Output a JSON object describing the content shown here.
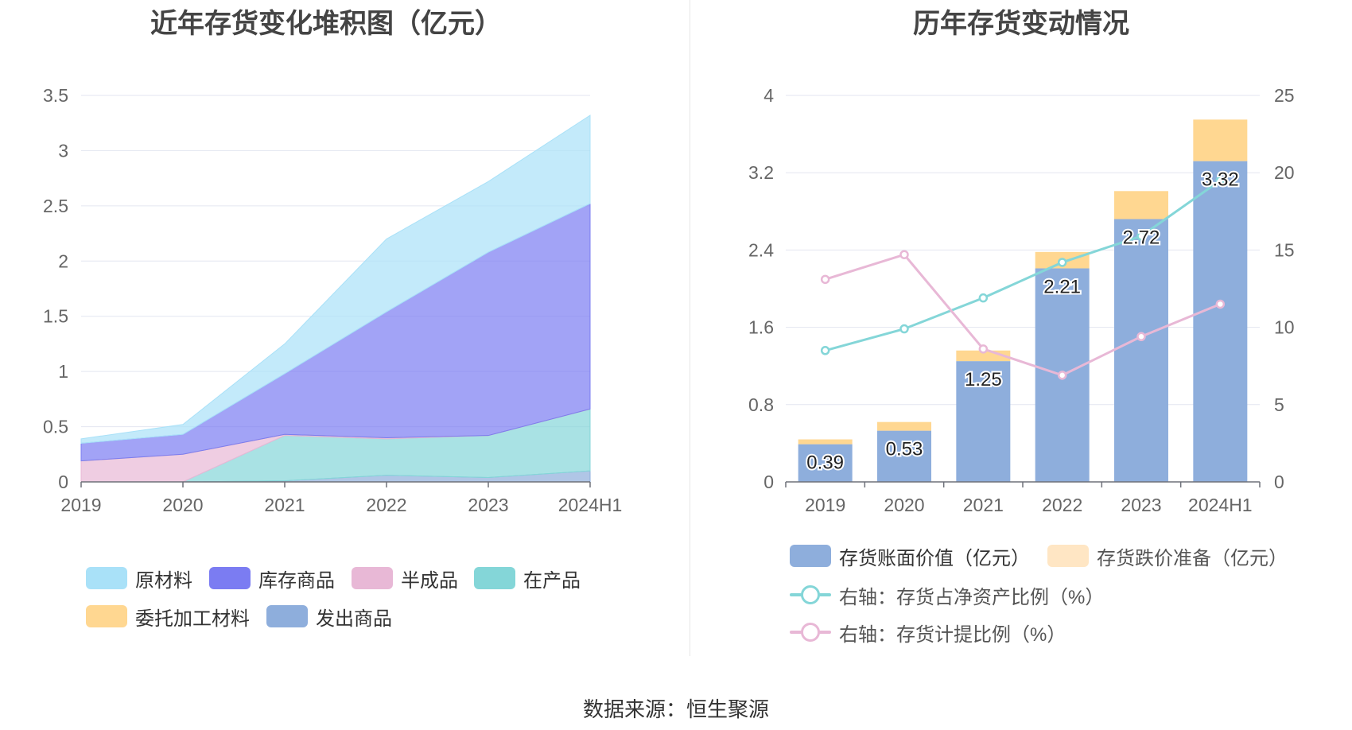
{
  "left_chart": {
    "chart_data": {
      "type": "area",
      "stacked": true,
      "title": "近年存货变化堆积图（亿元）",
      "categories": [
        "2019",
        "2020",
        "2021",
        "2022",
        "2023",
        "2024H1"
      ],
      "y_ticks": [
        "0",
        "0.5",
        "1",
        "1.5",
        "2",
        "2.5",
        "3",
        "3.5"
      ],
      "ylim": [
        0,
        3.5
      ],
      "series": [
        {
          "name": "发出商品",
          "color": "#8eaedc",
          "values": [
            0,
            0,
            0.01,
            0.06,
            0.04,
            0.1
          ]
        },
        {
          "name": "在产品",
          "color": "#84d6d8",
          "values": [
            0,
            0,
            0.41,
            0.33,
            0.38,
            0.56
          ]
        },
        {
          "name": "半成品",
          "color": "#e8b8d6",
          "values": [
            0.19,
            0.25,
            0.01,
            0.01,
            0.0,
            0.0
          ]
        },
        {
          "name": "委托加工材料",
          "color": "#ffd791",
          "values": [
            0,
            0,
            0,
            0,
            0,
            0
          ]
        },
        {
          "name": "库存商品",
          "color": "#7b7cf2",
          "values": [
            0.16,
            0.18,
            0.55,
            1.14,
            1.66,
            1.86
          ]
        },
        {
          "name": "原材料",
          "color": "#a9e1f8",
          "values": [
            0.04,
            0.09,
            0.27,
            0.66,
            0.64,
            0.8
          ]
        }
      ],
      "legend": [
        {
          "name": "原材料",
          "color": "#a9e1f8"
        },
        {
          "name": "库存商品",
          "color": "#7b7cf2"
        },
        {
          "name": "半成品",
          "color": "#e8b8d6"
        },
        {
          "name": "在产品",
          "color": "#84d6d8"
        },
        {
          "name": "委托加工材料",
          "color": "#ffd791"
        },
        {
          "name": "发出商品",
          "color": "#8eaedc"
        }
      ]
    }
  },
  "right_chart": {
    "chart_data": {
      "type": "bar",
      "stacked": true,
      "title": "历年存货变动情况",
      "categories": [
        "2019",
        "2020",
        "2021",
        "2022",
        "2023",
        "2024H1"
      ],
      "y_left_ticks": [
        "0",
        "0.8",
        "1.6",
        "2.4",
        "3.2",
        "4"
      ],
      "ylim_left": [
        0,
        4
      ],
      "y_right_ticks": [
        "0",
        "5",
        "10",
        "15",
        "20",
        "25"
      ],
      "ylim_right": [
        0,
        25
      ],
      "series": [
        {
          "name": "存货账面价值（亿元）",
          "color": "#8eaedc",
          "axis": "left",
          "values": [
            0.39,
            0.53,
            1.25,
            2.21,
            2.72,
            3.32
          ],
          "labels": [
            "0.39",
            "0.53",
            "1.25",
            "2.21",
            "2.72",
            "3.32"
          ]
        },
        {
          "name": "存货跌价准备（亿元）",
          "color": "#ffd791",
          "axis": "left",
          "values": [
            0.05,
            0.09,
            0.11,
            0.17,
            0.29,
            0.43
          ]
        },
        {
          "name": "右轴：存货占净资产比例（%）",
          "color": "#84d6d8",
          "axis": "right",
          "kind": "line",
          "values": [
            8.5,
            9.9,
            11.9,
            14.2,
            15.9,
            19.5
          ]
        },
        {
          "name": "右轴：存货计提比例（%）",
          "color": "#e8b8d6",
          "axis": "right",
          "kind": "line",
          "values": [
            13.1,
            14.7,
            8.6,
            6.9,
            9.4,
            11.5
          ]
        }
      ],
      "legend": [
        {
          "name": "存货账面价值（亿元）",
          "color": "#8eaedc",
          "kind": "bar"
        },
        {
          "name": "存货跌价准备（亿元）",
          "color": "#ffe6c4",
          "kind": "bar"
        },
        {
          "name": "右轴：存货占净资产比例（%）",
          "color": "#84d6d8",
          "kind": "line"
        },
        {
          "name": "右轴：存货计提比例（%）",
          "color": "#e8b8d6",
          "kind": "line"
        }
      ]
    }
  },
  "footer": {
    "source": "数据来源：恒生聚源"
  }
}
